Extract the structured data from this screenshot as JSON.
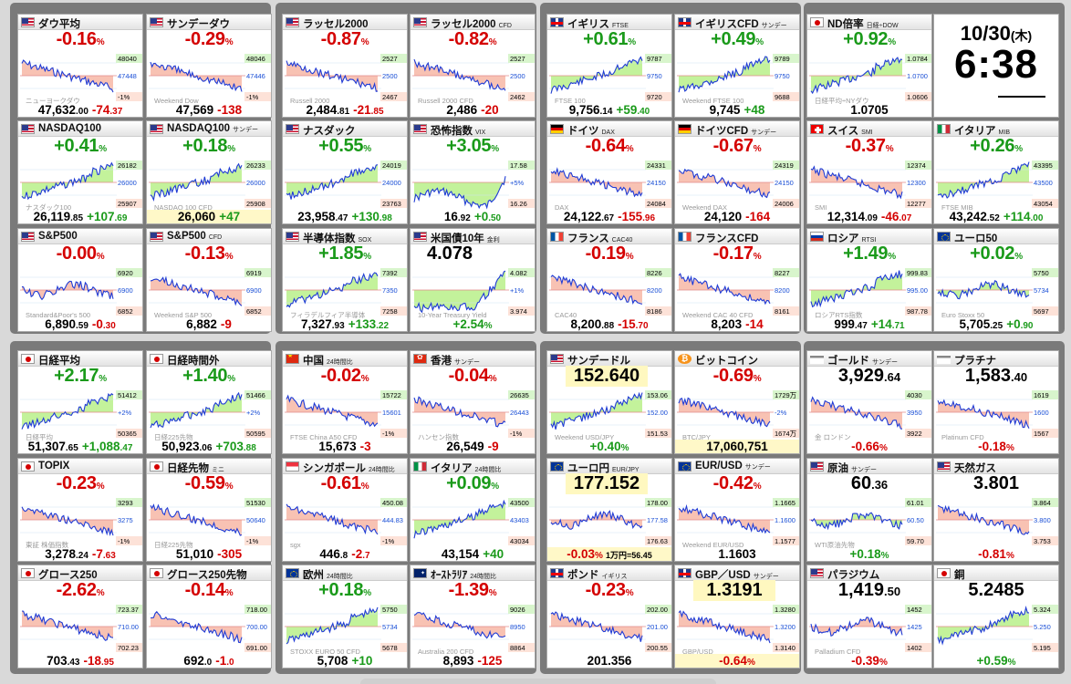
{
  "clock": {
    "date": "10/30",
    "weekday": "(木)",
    "time": "6:38"
  },
  "colors": {
    "up": "#1a9a1a",
    "down": "#d40000",
    "line": "#1f3bd6",
    "fill_up": "#b8f08a",
    "fill_down": "#f7b7a6",
    "highlight": "#fff8c0"
  },
  "tiles": [
    {
      "id": "dow",
      "flag": "us",
      "name": "ダウ平均",
      "sub": "",
      "pct": "-0.16",
      "price": "47,632",
      "dec": ".00",
      "change": "-74",
      "cdec": ".37",
      "trend": "down",
      "ax": [
        "48040",
        "47448",
        "-1%"
      ],
      "wm": "ニューヨークダウ"
    },
    {
      "id": "sunday-dow",
      "flag": "us",
      "name": "サンデーダウ",
      "sub": "",
      "pct": "-0.29",
      "price": "47,569",
      "dec": "",
      "change": "-138",
      "cdec": "",
      "trend": "down",
      "ax": [
        "48046",
        "47446",
        "-1%"
      ],
      "wm": "Weekend Dow"
    },
    {
      "id": "russell2000",
      "flag": "us",
      "name": "ラッセル2000",
      "sub": "",
      "pct": "-0.87",
      "price": "2,484",
      "dec": ".81",
      "change": "-21",
      "cdec": ".85",
      "trend": "down",
      "ax": [
        "2527",
        "2500",
        "2467"
      ],
      "wm": "Russell 2000"
    },
    {
      "id": "russell2000-cfd",
      "flag": "us",
      "name": "ラッセル2000",
      "sub": "CFD",
      "pct": "-0.82",
      "price": "2,486",
      "dec": "",
      "change": "-20",
      "cdec": "",
      "trend": "down",
      "ax": [
        "2527",
        "2500",
        "2462"
      ],
      "wm": "Russell 2000 CFD"
    },
    {
      "id": "uk-ftse",
      "flag": "uk",
      "name": "イギリス",
      "sub": "FTSE",
      "pct": "+0.61",
      "price": "9,756",
      "dec": ".14",
      "change": "+59",
      "cdec": ".40",
      "trend": "up",
      "ax": [
        "9787",
        "9750",
        "9720"
      ],
      "wm": "FTSE 100"
    },
    {
      "id": "uk-cfd",
      "flag": "uk",
      "name": "イギリスCFD",
      "sub": "サンデー",
      "pct": "+0.49",
      "price": "9,745",
      "dec": "",
      "change": "+48",
      "cdec": "",
      "trend": "up",
      "ax": [
        "9789",
        "9750",
        "9688"
      ],
      "wm": "Weekend FTSE 100"
    },
    {
      "id": "nd-ratio",
      "flag": "jp",
      "name": "ND倍率",
      "sub": "日経÷DOW",
      "pct": "+0.92",
      "price": "1.0705",
      "dec": "",
      "change": "",
      "cdec": "",
      "trend": "up",
      "ax": [
        "1.0784",
        "1.0700",
        "1.0606"
      ],
      "wm": "日経平均÷NYダウ"
    },
    {
      "id": "nasdaq100",
      "flag": "us",
      "name": "NASDAQ100",
      "sub": "",
      "pct": "+0.41",
      "price": "26,119",
      "dec": ".85",
      "change": "+107",
      "cdec": ".69",
      "trend": "up",
      "ax": [
        "26182",
        "26000",
        "25907"
      ],
      "wm": "ナスダック100"
    },
    {
      "id": "nasdaq100-sunday",
      "flag": "us",
      "name": "NASDAQ100",
      "sub": "サンデー",
      "pct": "+0.18",
      "price": "26,060",
      "dec": "",
      "change": "+47",
      "cdec": "",
      "trend": "up",
      "ax": [
        "26233",
        "26000",
        "25908"
      ],
      "wm": "NASDAQ 100 CFD",
      "hl": true
    },
    {
      "id": "nasdaq",
      "flag": "us",
      "name": "ナスダック",
      "sub": "",
      "pct": "+0.55",
      "price": "23,958",
      "dec": ".47",
      "change": "+130",
      "cdec": ".98",
      "trend": "up",
      "ax": [
        "24019",
        "24000",
        "23763"
      ],
      "wm": ""
    },
    {
      "id": "vix",
      "flag": "us",
      "name": "恐怖指数",
      "sub": "VIX",
      "pct": "+3.05",
      "price": "16",
      "dec": ".92",
      "change": "+0",
      "cdec": ".50",
      "trend": "vix",
      "ax": [
        "17.58",
        "+5%",
        "16.26"
      ],
      "wm": ""
    },
    {
      "id": "germany-dax",
      "flag": "de",
      "name": "ドイツ",
      "sub": "DAX",
      "pct": "-0.64",
      "price": "24,122",
      "dec": ".67",
      "change": "-155",
      "cdec": ".96",
      "trend": "down",
      "ax": [
        "24331",
        "24150",
        "24084"
      ],
      "wm": "DAX"
    },
    {
      "id": "germany-cfd",
      "flag": "de",
      "name": "ドイツCFD",
      "sub": "サンデー",
      "pct": "-0.67",
      "price": "24,120",
      "dec": "",
      "change": "-164",
      "cdec": "",
      "trend": "down",
      "ax": [
        "24319",
        "24150",
        "24006"
      ],
      "wm": "Weekend DAX"
    },
    {
      "id": "swiss-smi",
      "flag": "ch",
      "name": "スイス",
      "sub": "SMI",
      "pct": "-0.37",
      "price": "12,314",
      "dec": ".09",
      "change": "-46",
      "cdec": ".07",
      "trend": "down",
      "ax": [
        "12374",
        "12300",
        "12277"
      ],
      "wm": "SMI"
    },
    {
      "id": "italy-mib",
      "flag": "it",
      "name": "イタリア",
      "sub": "MIB",
      "pct": "+0.26",
      "price": "43,242",
      "dec": ".52",
      "change": "+114",
      "cdec": ".00",
      "trend": "up",
      "ax": [
        "43395",
        "43500",
        "43054"
      ],
      "wm": "FTSE MIB"
    },
    {
      "id": "sp500",
      "flag": "us",
      "name": "S&P500",
      "sub": "",
      "pct": "-0.00",
      "price": "6,890",
      "dec": ".59",
      "change": "-0",
      "cdec": ".30",
      "trend": "flat",
      "ax": [
        "6920",
        "6900",
        "6852"
      ],
      "wm": "Standard&Poor's 500"
    },
    {
      "id": "sp500-cfd",
      "flag": "us",
      "name": "S&P500",
      "sub": "CFD",
      "pct": "-0.13",
      "price": "6,882",
      "dec": "",
      "change": "-9",
      "cdec": "",
      "trend": "down",
      "ax": [
        "6919",
        "6900",
        "6852"
      ],
      "wm": "Weekend S&P 500"
    },
    {
      "id": "sox",
      "flag": "us",
      "name": "半導体指数",
      "sub": "SOX",
      "pct": "+1.85",
      "price": "7,327",
      "dec": ".93",
      "change": "+133",
      "cdec": ".22",
      "trend": "up",
      "ax": [
        "7392",
        "7350",
        "7258"
      ],
      "wm": "フィラデルフィア半導体"
    },
    {
      "id": "us10y",
      "flag": "us",
      "name": "米国債10年",
      "sub": "金利",
      "pct": "+2.54",
      "price": "4.078",
      "dec": "",
      "change": "",
      "cdec": "",
      "trend": "bond",
      "ax": [
        "4.082",
        "+1%",
        "3.974"
      ],
      "wm": "10-Year Treasury Yield"
    },
    {
      "id": "france-cac40",
      "flag": "fr",
      "name": "フランス",
      "sub": "CAC40",
      "pct": "-0.19",
      "price": "8,200",
      "dec": ".88",
      "change": "-15",
      "cdec": ".70",
      "trend": "down",
      "ax": [
        "8226",
        "8200",
        "8186"
      ],
      "wm": "CAC40"
    },
    {
      "id": "france-cfd",
      "flag": "fr",
      "name": "フランスCFD",
      "sub": "",
      "pct": "-0.17",
      "price": "8,203",
      "dec": "",
      "change": "-14",
      "cdec": "",
      "trend": "down",
      "ax": [
        "8227",
        "8200",
        "8161"
      ],
      "wm": "Weekend CAC 40 CFD"
    },
    {
      "id": "russia-rtsi",
      "flag": "ru",
      "name": "ロシア",
      "sub": "RTSI",
      "pct": "+1.49",
      "price": "999",
      "dec": ".47",
      "change": "+14",
      "cdec": ".71",
      "trend": "up",
      "ax": [
        "999.83",
        "995.00",
        "987.78"
      ],
      "wm": "ロシアRTS指数"
    },
    {
      "id": "euro50",
      "flag": "eu",
      "name": "ユーロ50",
      "sub": "",
      "pct": "+0.02",
      "price": "5,705",
      "dec": ".25",
      "change": "+0",
      "cdec": ".90",
      "trend": "flat",
      "ax": [
        "5750",
        "5734",
        "5697"
      ],
      "wm": "Euro Stoxx 50"
    },
    {
      "id": "nikkei",
      "flag": "jp",
      "name": "日経平均",
      "sub": "",
      "pct": "+2.17",
      "price": "51,307",
      "dec": ".65",
      "change": "+1,088",
      "cdec": ".47",
      "trend": "up",
      "ax": [
        "51412",
        "+2%",
        "50365"
      ],
      "wm": "日経平均"
    },
    {
      "id": "nikkei-offhours",
      "flag": "jp",
      "name": "日経時間外",
      "sub": "",
      "pct": "+1.40",
      "price": "50,923",
      "dec": ".06",
      "change": "+703",
      "cdec": ".88",
      "trend": "up",
      "ax": [
        "51466",
        "+2%",
        "50595"
      ],
      "wm": "日経225先物"
    },
    {
      "id": "china",
      "flag": "cn",
      "name": "中国",
      "sub": "24時間比",
      "pct": "-0.02",
      "price": "15,673",
      "dec": "",
      "change": "-3",
      "cdec": "",
      "trend": "down",
      "ax": [
        "15722",
        "15601",
        "-1%"
      ],
      "wm": "FTSE China A50 CFD"
    },
    {
      "id": "hongkong",
      "flag": "hk",
      "name": "香港",
      "sub": "サンデー",
      "pct": "-0.04",
      "price": "26,549",
      "dec": "",
      "change": "-9",
      "cdec": "",
      "trend": "down",
      "ax": [
        "26635",
        "26443",
        "-1%"
      ],
      "wm": "ハンセン指数"
    },
    {
      "id": "usdjpy-sunday",
      "flag": "us",
      "name": "サンデードル",
      "sub": "",
      "pct": "+0.40",
      "price": "152.640",
      "dec": "",
      "change": "",
      "cdec": "",
      "trend": "up",
      "ax": [
        "153.06",
        "152.00",
        "151.53"
      ],
      "wm": "Weekend USD/JPY",
      "pricehl": true
    },
    {
      "id": "bitcoin",
      "flag": "btc",
      "name": "ビットコイン",
      "sub": "",
      "pct": "-0.69",
      "price": "17,060,751",
      "dec": "",
      "change": "",
      "cdec": "",
      "trend": "down",
      "ax": [
        "1729万",
        "-2%",
        "1674万"
      ],
      "wm": "BTC/JPY",
      "foothl": true
    },
    {
      "id": "gold",
      "flag": "gold",
      "name": "ゴールド",
      "sub": "サンデー",
      "pct": "-0.66",
      "price": "3,929",
      "dec": ".64",
      "change": "",
      "cdec": "",
      "trend": "down",
      "ax": [
        "4030",
        "3950",
        "3922"
      ],
      "wm": "金 ロンドン",
      "bigprice": true
    },
    {
      "id": "platinum",
      "flag": "gold",
      "name": "プラチナ",
      "sub": "",
      "pct": "-0.18",
      "price": "1,583",
      "dec": ".40",
      "change": "",
      "cdec": "",
      "trend": "down",
      "ax": [
        "1619",
        "1600",
        "1567"
      ],
      "wm": "Platinum CFD",
      "bigprice": true
    },
    {
      "id": "topix",
      "flag": "jp",
      "name": "TOPIX",
      "sub": "",
      "pct": "-0.23",
      "price": "3,278",
      "dec": ".24",
      "change": "-7",
      "cdec": ".63",
      "trend": "down",
      "ax": [
        "3293",
        "3275",
        "-1%"
      ],
      "wm": "東証 株価指数"
    },
    {
      "id": "nikkei-futures",
      "flag": "jp",
      "name": "日経先物",
      "sub": "ミニ",
      "pct": "-0.59",
      "price": "51,010",
      "dec": "",
      "change": "-305",
      "cdec": "",
      "trend": "down",
      "ax": [
        "51530",
        "50640",
        "-1%"
      ],
      "wm": "日経225先物"
    },
    {
      "id": "singapore",
      "flag": "sg",
      "name": "シンガポール",
      "sub": "24時間比",
      "pct": "-0.61",
      "price": "446",
      "dec": ".8",
      "change": "-2",
      "cdec": ".7",
      "trend": "down",
      "ax": [
        "450.08",
        "444.83",
        "-1%"
      ],
      "wm": "sgx"
    },
    {
      "id": "italy-24h",
      "flag": "it",
      "name": "イタリア",
      "sub": "24時間比",
      "pct": "+0.09",
      "price": "43,154",
      "dec": "",
      "change": "+40",
      "cdec": "",
      "trend": "up",
      "ax": [
        "43500",
        "43403",
        "43034"
      ],
      "wm": ""
    },
    {
      "id": "eurjpy",
      "flag": "eu",
      "name": "ユーロ円",
      "sub": "EUR/JPY",
      "pct": "-0.03",
      "price": "177.152",
      "dec": "",
      "change": "",
      "cdec": "",
      "trend": "flat",
      "ax": [
        "178.00",
        "177.58",
        "176.63"
      ],
      "wm": "",
      "pricehl": true,
      "foothl": true,
      "footextra": "1万円=56.45"
    },
    {
      "id": "eurusd",
      "flag": "eu",
      "name": "EUR/USD",
      "sub": "サンデー",
      "pct": "-0.42",
      "price": "1.1603",
      "dec": "",
      "change": "",
      "cdec": "",
      "trend": "down",
      "ax": [
        "1.1665",
        "1.1600",
        "1.1577"
      ],
      "wm": "Weekend EUR/USD"
    },
    {
      "id": "crude-oil",
      "flag": "us",
      "name": "原油",
      "sub": "サンデー",
      "pct": "+0.18",
      "price": "60",
      "dec": ".36",
      "change": "",
      "cdec": "",
      "trend": "flat",
      "ax": [
        "61.01",
        "60.50",
        "59.70"
      ],
      "wm": "WTI原油先物",
      "bigprice": true
    },
    {
      "id": "natural-gas",
      "flag": "us",
      "name": "天然ガス",
      "sub": "",
      "pct": "-0.81",
      "price": "3.801",
      "dec": "",
      "change": "",
      "cdec": "",
      "trend": "down",
      "ax": [
        "3.864",
        "3.800",
        "3.753"
      ],
      "wm": "",
      "bigprice": true
    },
    {
      "id": "growth250",
      "flag": "jp",
      "name": "グロース250",
      "sub": "",
      "pct": "-2.62",
      "price": "703",
      "dec": ".43",
      "change": "-18",
      "cdec": ".95",
      "trend": "down",
      "ax": [
        "723.37",
        "710.00",
        "702.23"
      ],
      "wm": ""
    },
    {
      "id": "growth250-futures",
      "flag": "jp",
      "name": "グロース250先物",
      "sub": "",
      "pct": "-0.14",
      "price": "692",
      "dec": ".0",
      "change": "-1",
      "cdec": ".0",
      "trend": "down",
      "ax": [
        "718.00",
        "700.00",
        "691.00"
      ],
      "wm": ""
    },
    {
      "id": "europe",
      "flag": "eu",
      "name": "欧州",
      "sub": "24時間比",
      "pct": "+0.18",
      "price": "5,708",
      "dec": "",
      "change": "+10",
      "cdec": "",
      "trend": "up",
      "ax": [
        "5750",
        "5734",
        "5678"
      ],
      "wm": "STOXX EURO 50 CFD"
    },
    {
      "id": "australia",
      "flag": "au",
      "name": "ｵｰｽﾄﾗﾘｱ",
      "sub": "24時間比",
      "pct": "-1.39",
      "price": "8,893",
      "dec": "",
      "change": "-125",
      "cdec": "",
      "trend": "down",
      "ax": [
        "9026",
        "8950",
        "8864"
      ],
      "wm": "Australia 200 CFD"
    },
    {
      "id": "gbpjpy",
      "flag": "uk",
      "name": "ポンド",
      "sub": "イギリス",
      "pct": "-0.23",
      "price": "201.356",
      "dec": "",
      "change": "",
      "cdec": "",
      "trend": "down",
      "ax": [
        "202.00",
        "201.00",
        "200.55"
      ],
      "wm": "",
      "footextra": "1万円=49.66"
    },
    {
      "id": "gbpusd",
      "flag": "uk",
      "name": "GBP／USD",
      "sub": "サンデー",
      "pct": "-0.64",
      "price": "1.3191",
      "dec": "",
      "change": "",
      "cdec": "",
      "trend": "down",
      "ax": [
        "1.3280",
        "1.3200",
        "1.3140"
      ],
      "wm": "GBP/USD",
      "pricehl": true,
      "foothl": true
    },
    {
      "id": "palladium",
      "flag": "us",
      "name": "パラジウム",
      "sub": "",
      "pct": "-0.39",
      "price": "1,419",
      "dec": ".50",
      "change": "",
      "cdec": "",
      "trend": "flat",
      "ax": [
        "1452",
        "1425",
        "1402"
      ],
      "wm": "Palladium CFD",
      "bigprice": true
    },
    {
      "id": "copper",
      "flag": "jp",
      "name": "銅",
      "sub": "",
      "pct": "+0.59",
      "price": "5.2485",
      "dec": "",
      "change": "",
      "cdec": "",
      "trend": "up",
      "ax": [
        "5.324",
        "5.250",
        "5.195"
      ],
      "wm": "",
      "bigprice": true
    }
  ]
}
